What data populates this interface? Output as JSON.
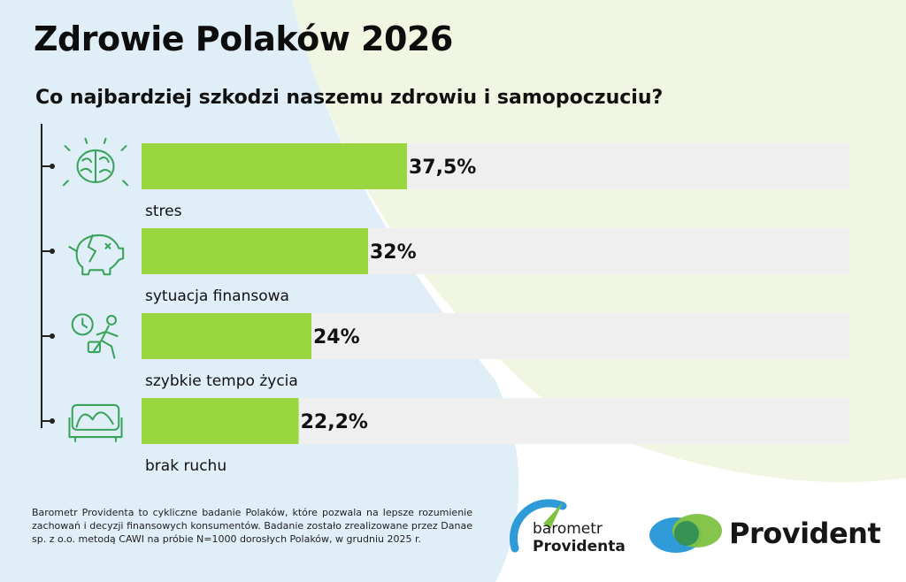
{
  "page": {
    "title": "Zdrowie Polaków 2026",
    "question": "Co najbardziej szkodzi naszemu zdrowiu i samopoczuciu?"
  },
  "colors": {
    "bar": "#9ad640",
    "track": "#efefef",
    "icon": "#3aa35b",
    "bg_blue": "#dcecf6",
    "bg_green": "#eef5de",
    "logo_blue": "#2e9bd8",
    "logo_green": "#7fc241"
  },
  "chart_data": {
    "type": "bar",
    "orientation": "horizontal",
    "categories": [
      "stres",
      "sytuacja finansowa",
      "szybkie tempo życia",
      "brak ruchu"
    ],
    "values": [
      37.5,
      32,
      24,
      22.2
    ],
    "value_labels": [
      "37,5%",
      "32%",
      "24%",
      "22,2%"
    ],
    "icons": [
      "brain-icon",
      "broken-piggy-bank-icon",
      "clock-running-man-icon",
      "couch-icon"
    ],
    "xlim": [
      0,
      100
    ],
    "grid": false,
    "legend": "none"
  },
  "footnote": "Barometr Providenta to cykliczne badanie Polaków, które pozwala na lepsze rozumienie zachowań i decyzji finansowych konsumentów. Badanie zostało zrealizowane przez Danae sp. z o.o. metodą CAWI na próbie N=1000 dorosłych Polaków, w grudniu 2025 r.",
  "logos": {
    "barometr_line1": "barometr",
    "barometr_line2": "Providenta",
    "provident": "Provident"
  }
}
